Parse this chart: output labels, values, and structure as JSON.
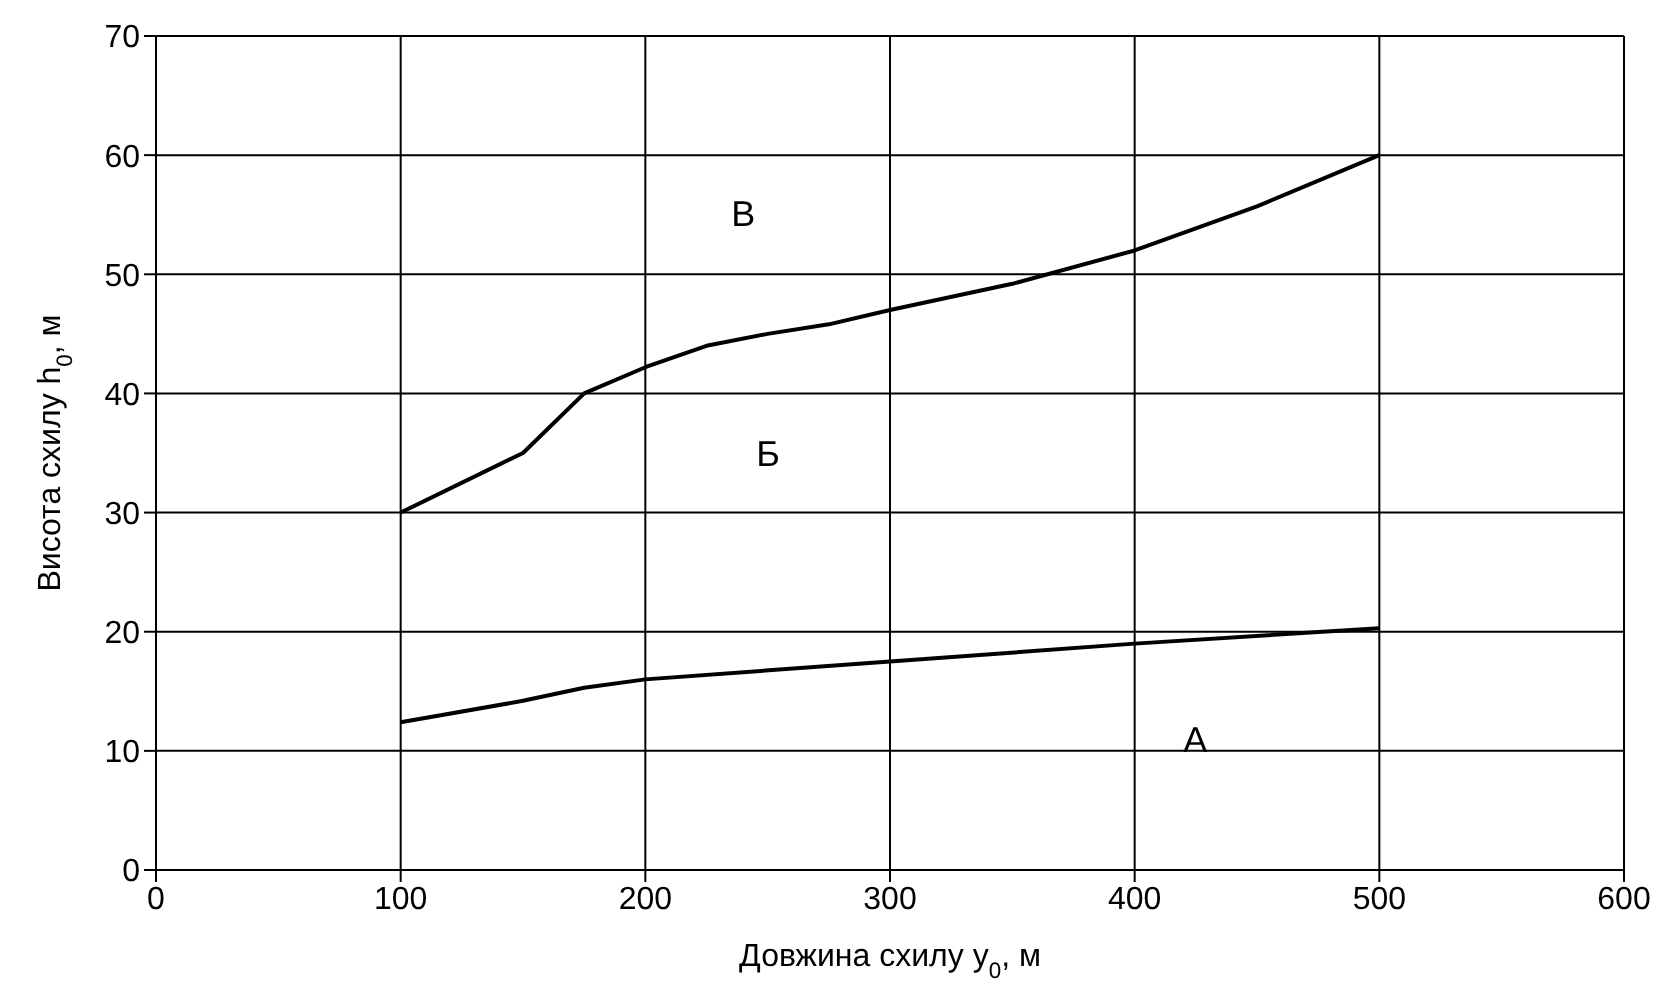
{
  "chart_data": {
    "type": "line",
    "xlabel": "Довжина схилу y$_{0}$, м",
    "ylabel": "Висота схилу h$_{0}$, м",
    "xlim": [
      0,
      600
    ],
    "xticks": [
      0,
      100,
      200,
      300,
      400,
      500,
      600
    ],
    "ylim": [
      0,
      70
    ],
    "yticks": [
      0,
      10,
      20,
      30,
      40,
      50,
      60,
      70
    ],
    "grid": true,
    "marker": "none",
    "line_style": "solid",
    "series": [
      {
        "color": "#000000",
        "x": [
          100,
          150,
          175,
          200,
          225,
          250,
          275,
          300,
          350,
          400,
          450,
          500
        ],
        "values": [
          30,
          35,
          40,
          42.2,
          44,
          45,
          45.8,
          47,
          49.2,
          52,
          55.7,
          60
        ]
      },
      {
        "color": "#000000",
        "x": [
          100,
          150,
          175,
          200,
          300,
          400,
          500
        ],
        "values": [
          12.4,
          14.2,
          15.3,
          16,
          17.5,
          19,
          20.3
        ]
      }
    ],
    "annotations": [
      "В",
      "Б",
      "А"
    ]
  }
}
